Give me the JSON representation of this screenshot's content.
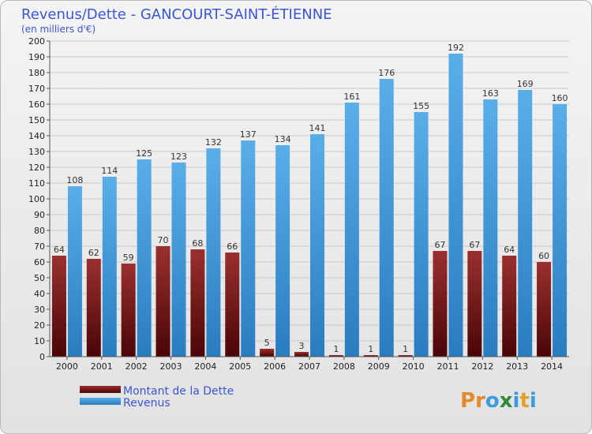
{
  "chart_data": {
    "type": "bar",
    "title": "Revenus/Dette - GANCOURT-SAINT-ÉTIENNE",
    "subtitle": "(en milliers d'€)",
    "categories": [
      "2000",
      "2001",
      "2002",
      "2003",
      "2004",
      "2005",
      "2006",
      "2007",
      "2008",
      "2009",
      "2010",
      "2011",
      "2012",
      "2013",
      "2014"
    ],
    "series": [
      {
        "name": "Montant de la Dette",
        "color": "#7a1010",
        "values": [
          64,
          62,
          59,
          70,
          68,
          66,
          5,
          3,
          1,
          1,
          1,
          67,
          67,
          64,
          60
        ]
      },
      {
        "name": "Revenus",
        "color": "#3b9be0",
        "values": [
          108,
          114,
          125,
          123,
          132,
          137,
          134,
          141,
          161,
          176,
          155,
          192,
          163,
          169,
          160
        ]
      }
    ],
    "ylim": [
      0,
      200
    ],
    "ytick_step": 10,
    "grid": true,
    "legend_position": "bottom-left",
    "xlabel": "",
    "ylabel": ""
  },
  "brand": {
    "letters": [
      "P",
      "r",
      "o",
      "x",
      "i",
      "t",
      "i"
    ],
    "colors": [
      "#e08a2a",
      "#e08a2a",
      "#3b9be0",
      "#2f8a3a",
      "#3b9be0",
      "#e0a02a",
      "#3b9be0"
    ]
  }
}
